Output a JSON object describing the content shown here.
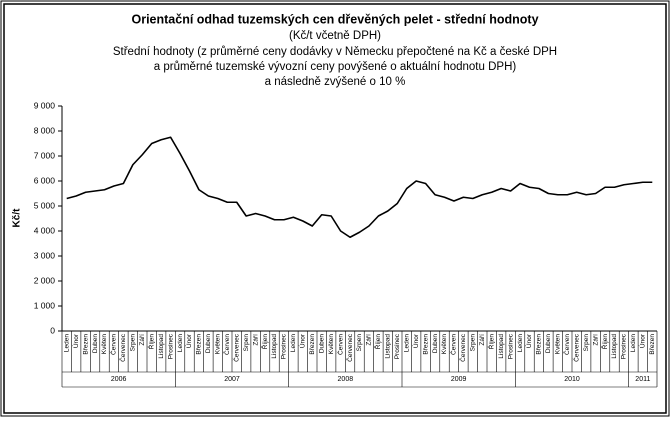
{
  "chart_data": {
    "type": "line",
    "title": "Orientační odhad tuzemských cen dřevěných pelet - střední hodnoty",
    "subtitle_lines": [
      "(Kč/t včetně DPH)",
      "Střední hodnoty (z průměrné ceny dodávky v Německu přepočtené na Kč a české DPH",
      "a průměrné tuzemské vývozní ceny povýšené o aktuální hodnotu DPH)",
      "a následně zvýšené o 10 %"
    ],
    "y_label": "Kč/t",
    "categories": [
      "Leden",
      "Únor",
      "Březen",
      "Duben",
      "Květen",
      "Červen",
      "Červenec",
      "Srpen",
      "Září",
      "Říjen",
      "Listopad",
      "Prosinec",
      "Leden",
      "Únor",
      "Březen",
      "Duben",
      "Květen",
      "Červen",
      "Červenec",
      "Srpen",
      "Září",
      "Říjen",
      "Listopad",
      "Prosinec",
      "Leden",
      "Únor",
      "Březen",
      "Duben",
      "Květen",
      "Červen",
      "Červenec",
      "Srpen",
      "Září",
      "Říjen",
      "Listopad",
      "Prosinec",
      "Leden",
      "Únor",
      "Březen",
      "Duben",
      "Květen",
      "Červen",
      "Červenec",
      "Srpen",
      "Září",
      "Říjen",
      "Listopad",
      "Prosinec",
      "Leden",
      "Únor",
      "Březen",
      "Duben",
      "Květen",
      "Červen",
      "Červenec",
      "Srpen",
      "Září",
      "Říjen",
      "Listopad",
      "Prosinec",
      "Leden",
      "Únor",
      "Březen"
    ],
    "year_labels": [
      "2006",
      "2007",
      "2008",
      "2009",
      "2010",
      "2011"
    ],
    "values": [
      5300,
      5400,
      5550,
      5600,
      5650,
      5800,
      5900,
      6650,
      7050,
      7500,
      7650,
      7750,
      7100,
      6400,
      5650,
      5400,
      5300,
      5150,
      5150,
      4600,
      4700,
      4600,
      4450,
      4450,
      4550,
      4400,
      4200,
      4650,
      4600,
      4000,
      3750,
      3950,
      4200,
      4600,
      4800,
      5100,
      5700,
      6000,
      5900,
      5450,
      5350,
      5200,
      5350,
      5300,
      5450,
      5550,
      5700,
      5600,
      5900,
      5750,
      5700,
      5500,
      5450,
      5450,
      5550,
      5450,
      5500,
      5750,
      5750,
      5850,
      5900,
      5950,
      5950
    ],
    "color": "#000000",
    "ylim": [
      0,
      9000
    ],
    "yticks": [
      0,
      {
        "value": 1000,
        "label": "1 000"
      },
      {
        "value": 2000,
        "label": "2 000"
      },
      {
        "value": 3000,
        "label": "3 000"
      },
      {
        "value": 4000,
        "label": "4 000"
      },
      {
        "value": 5000,
        "label": "5 000"
      },
      {
        "value": 6000,
        "label": "6 000"
      },
      {
        "value": 7000,
        "label": "7 000"
      },
      {
        "value": 8000,
        "label": "8 000"
      },
      {
        "value": 9000,
        "label": "9 000"
      }
    ]
  }
}
